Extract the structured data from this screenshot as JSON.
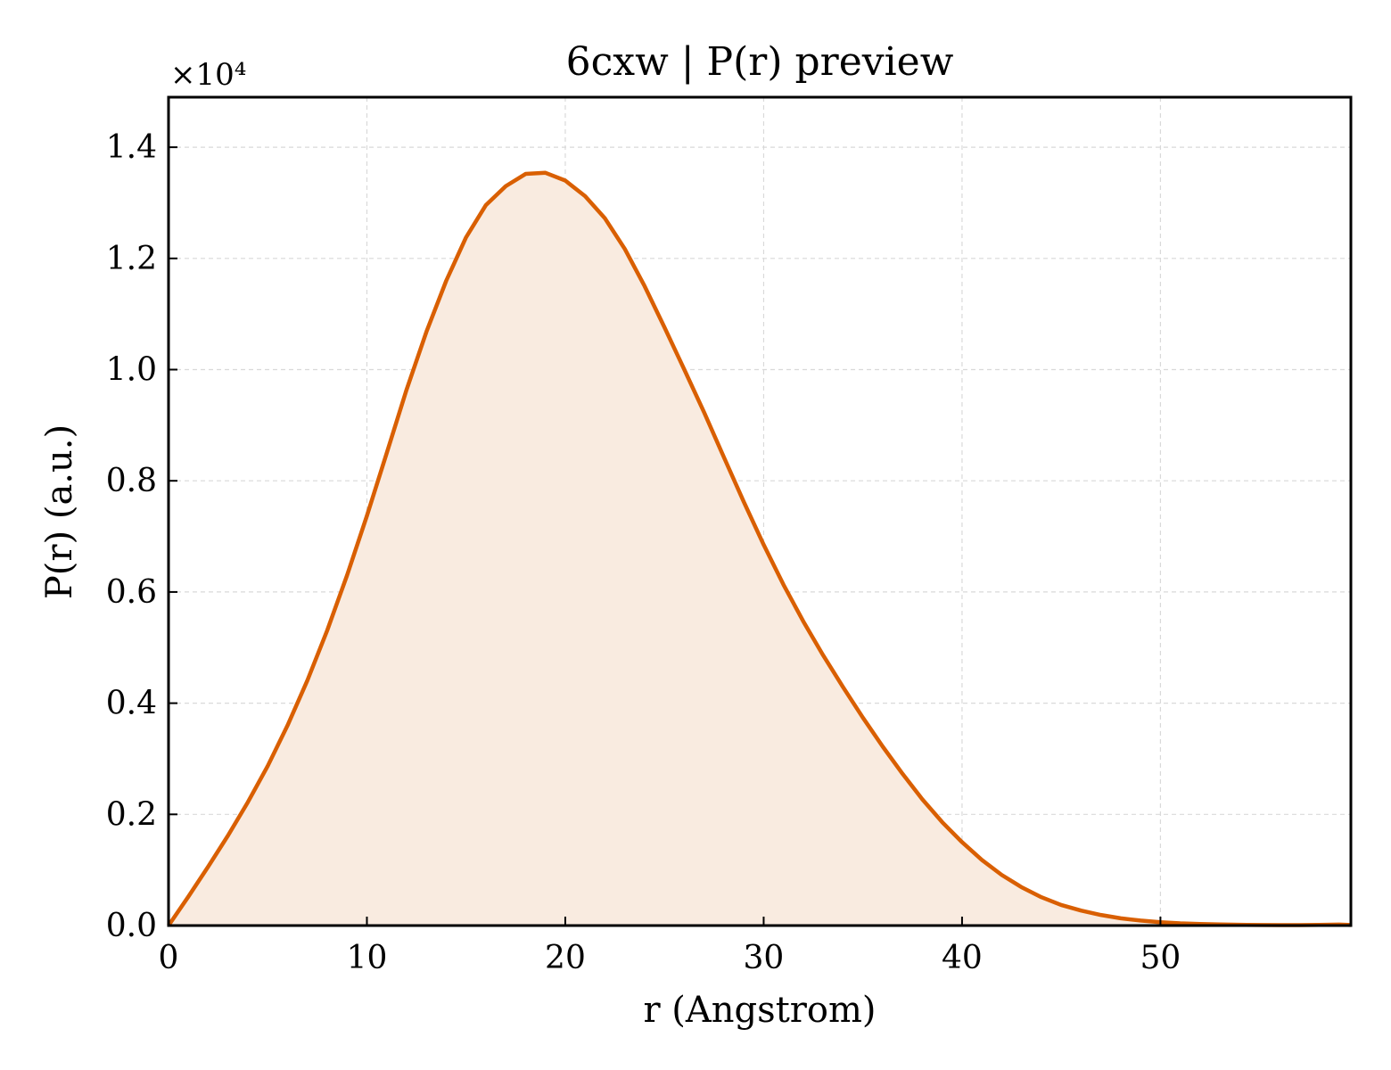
{
  "chart_data": {
    "type": "area",
    "title": "6cxw | P(r) preview",
    "xlabel": "r (Angstrom)",
    "ylabel": "P(r) (a.u.)",
    "y_offset_label": "×10⁴",
    "y_scale": 10000,
    "xlim": [
      0,
      59.6
    ],
    "ylim": [
      0,
      1.49
    ],
    "xticks": [
      0,
      10,
      20,
      30,
      40,
      50
    ],
    "yticks": [
      0.0,
      0.2,
      0.4,
      0.6,
      0.8,
      1.0,
      1.2,
      1.4
    ],
    "xtick_labels": [
      "0",
      "10",
      "20",
      "30",
      "40",
      "50"
    ],
    "ytick_labels": [
      "0.0",
      "0.2",
      "0.4",
      "0.6",
      "0.8",
      "1.0",
      "1.2",
      "1.4"
    ],
    "grid": true,
    "line_color": "#d95f02",
    "fill_color": "#f9ebe0",
    "series": [
      {
        "x": [
          0,
          1,
          2,
          3,
          4,
          5,
          6,
          7,
          8,
          9,
          10,
          11,
          12,
          13,
          14,
          15,
          16,
          17,
          18,
          19,
          20,
          21,
          22,
          23,
          24,
          25,
          26,
          27,
          28,
          29,
          30,
          31,
          32,
          33,
          34,
          35,
          36,
          37,
          38,
          39,
          40,
          41,
          42,
          43,
          44,
          45,
          46,
          47,
          48,
          49,
          50,
          51,
          52,
          53,
          54,
          55,
          56,
          57,
          58,
          59,
          59.6
        ],
        "y": [
          0,
          520,
          1060,
          1620,
          2220,
          2870,
          3600,
          4410,
          5310,
          6300,
          7370,
          8500,
          9640,
          10680,
          11600,
          12380,
          12960,
          13300,
          13520,
          13540,
          13400,
          13120,
          12720,
          12170,
          11500,
          10760,
          10000,
          9230,
          8420,
          7620,
          6850,
          6130,
          5470,
          4860,
          4290,
          3740,
          3220,
          2730,
          2270,
          1860,
          1500,
          1180,
          910,
          690,
          510,
          370,
          270,
          190,
          130,
          90,
          60,
          40,
          28,
          20,
          14,
          10,
          8,
          9,
          12,
          18,
          10
        ]
      }
    ]
  }
}
